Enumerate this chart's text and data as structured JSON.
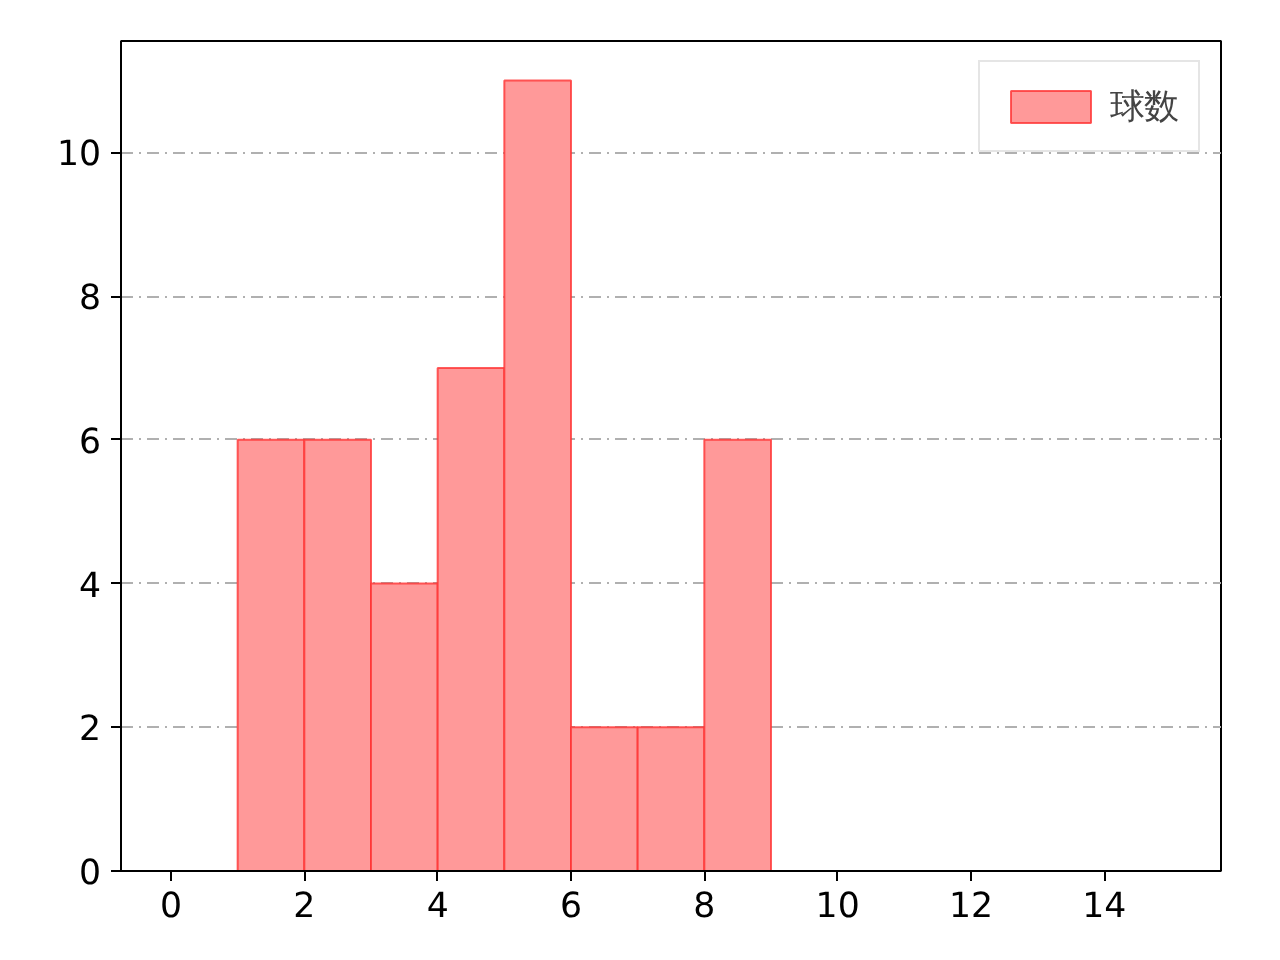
{
  "chart_data": {
    "type": "histogram",
    "bins": [
      1,
      2,
      3,
      4,
      5,
      6,
      7,
      8,
      9
    ],
    "series": [
      {
        "name": "球数",
        "color": "#ff9999",
        "values": [
          6,
          6,
          4,
          7,
          11,
          2,
          2,
          6
        ]
      }
    ],
    "xlim": [
      -0.75,
      15.75
    ],
    "ylim": [
      0,
      11.55
    ],
    "xticks": [
      0,
      2,
      4,
      6,
      8,
      10,
      12,
      14
    ],
    "yticks": [
      0,
      2,
      4,
      6,
      8,
      10
    ],
    "grid": "y",
    "legend": "top right"
  }
}
